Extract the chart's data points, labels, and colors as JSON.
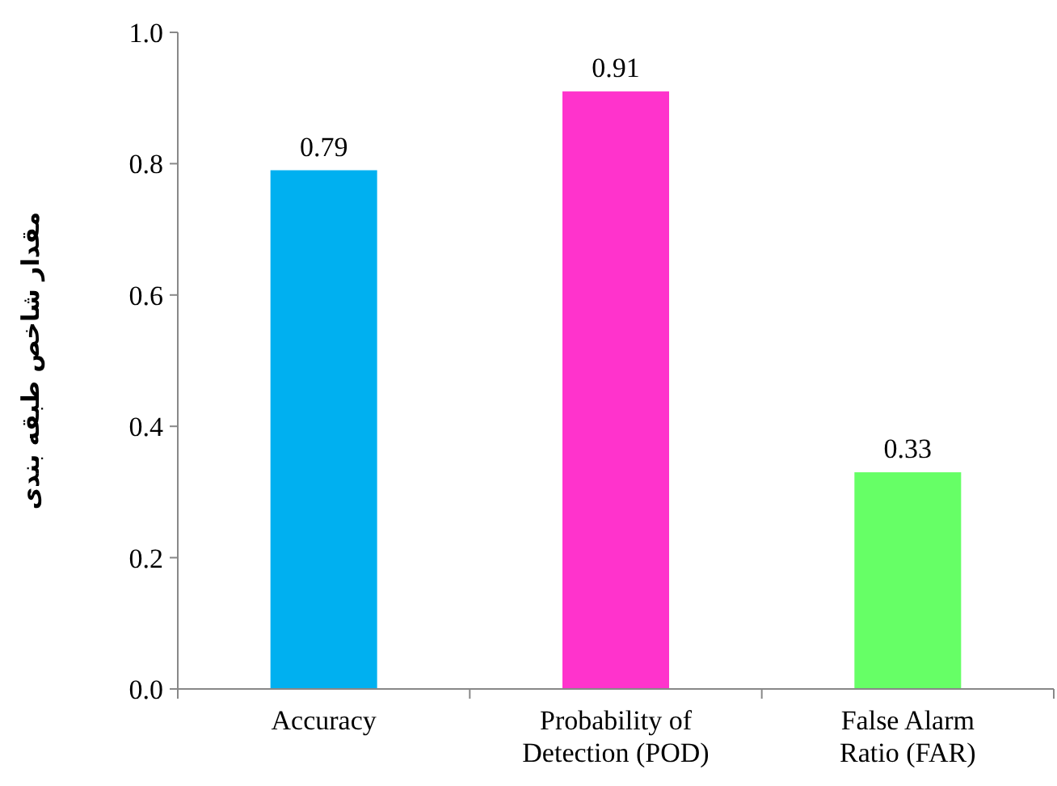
{
  "chart_data": {
    "type": "bar",
    "ylabel": "مقدار شاخص طبقه بندی",
    "categories": [
      "Accuracy",
      "Probability of Detection (POD)",
      "False Alarm Ratio (FAR)"
    ],
    "values": [
      0.79,
      0.91,
      0.33
    ],
    "colors": [
      "#00b0f0",
      "#ff33cc",
      "#66ff66"
    ],
    "ylim": [
      0,
      1
    ],
    "yticks": [
      {
        "value": 0,
        "label": "0.0"
      },
      {
        "value": 0.2,
        "label": "0.2"
      },
      {
        "value": 0.4,
        "label": "0.4"
      },
      {
        "value": 0.6,
        "label": "0.6"
      },
      {
        "value": 0.8,
        "label": "0.8"
      },
      {
        "value": 1,
        "label": "1.0"
      }
    ],
    "data_labels": true,
    "grid": false
  }
}
